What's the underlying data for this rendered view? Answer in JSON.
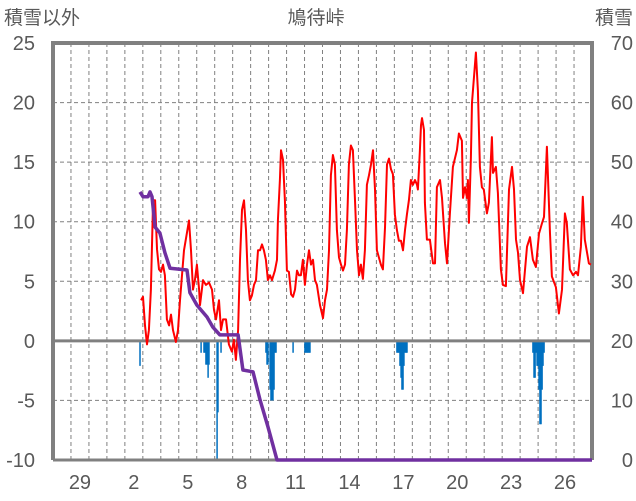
{
  "chart_data": {
    "type": "line",
    "title": "鳩待峠",
    "ylabel_left": "積雪以外",
    "ylabel_right": "積雪",
    "ylim_left": [
      -10,
      25
    ],
    "yticks_left": [
      "25",
      "20",
      "15",
      "10",
      "5",
      "0",
      "-5",
      "-10"
    ],
    "ylim_right": [
      0,
      70
    ],
    "yticks_right": [
      "70",
      "60",
      "50",
      "40",
      "30",
      "20",
      "10",
      "0"
    ],
    "x_unit": "days since 04-28 00:00",
    "xlim": [
      0,
      30
    ],
    "xticks": [
      {
        "label": "29",
        "day": 1.5
      },
      {
        "label": "2",
        "day": 4.5
      },
      {
        "label": "5",
        "day": 7.5
      },
      {
        "label": "8",
        "day": 10.5
      },
      {
        "label": "11",
        "day": 13.5
      },
      {
        "label": "14",
        "day": 16.5
      },
      {
        "label": "17",
        "day": 19.5
      },
      {
        "label": "20",
        "day": 22.5
      },
      {
        "label": "23",
        "day": 25.5
      },
      {
        "label": "26",
        "day": 28.5
      }
    ],
    "grid": true,
    "colors": {
      "red": "#ff0000",
      "purple": "#7030a0",
      "blue": "#0070c0",
      "axis": "#808080",
      "grid": "#808080",
      "text": "#595959"
    },
    "series": [
      {
        "name": "red-line",
        "axis": "left",
        "color": "#ff0000",
        "points": [
          [
            4.9,
            3.4
          ],
          [
            5.01,
            3.7
          ],
          [
            5.12,
            1.3
          ],
          [
            5.23,
            -0.3
          ],
          [
            5.34,
            0.9
          ],
          [
            5.45,
            4.3
          ],
          [
            5.57,
            11.8
          ],
          [
            5.68,
            11.8
          ],
          [
            5.79,
            7.7
          ],
          [
            5.9,
            6.0
          ],
          [
            6.01,
            5.8
          ],
          [
            6.12,
            6.4
          ],
          [
            6.23,
            5.5
          ],
          [
            6.34,
            1.8
          ],
          [
            6.46,
            1.3
          ],
          [
            6.57,
            2.2
          ],
          [
            6.68,
            0.9
          ],
          [
            6.84,
            -0.1
          ],
          [
            6.96,
            0.9
          ],
          [
            7.07,
            3.4
          ],
          [
            7.29,
            7.6
          ],
          [
            7.57,
            10.1
          ],
          [
            7.68,
            7.6
          ],
          [
            7.79,
            4.3
          ],
          [
            7.9,
            5.1
          ],
          [
            8.01,
            6.4
          ],
          [
            8.13,
            4.3
          ],
          [
            8.18,
            3.0
          ],
          [
            8.35,
            5.1
          ],
          [
            8.51,
            4.7
          ],
          [
            8.68,
            4.9
          ],
          [
            8.85,
            4.3
          ],
          [
            8.96,
            2.6
          ],
          [
            9.07,
            1.8
          ],
          [
            9.24,
            3.4
          ],
          [
            9.35,
            0.9
          ],
          [
            9.46,
            1.8
          ],
          [
            9.63,
            1.8
          ],
          [
            9.79,
            -0.3
          ],
          [
            9.96,
            -0.9
          ],
          [
            10.07,
            0.1
          ],
          [
            10.18,
            -1.6
          ],
          [
            10.3,
            0.9
          ],
          [
            10.41,
            6.8
          ],
          [
            10.52,
            11.0
          ],
          [
            10.63,
            11.8
          ],
          [
            10.74,
            9.3
          ],
          [
            10.85,
            5.1
          ],
          [
            10.96,
            3.4
          ],
          [
            11.07,
            3.8
          ],
          [
            11.19,
            4.7
          ],
          [
            11.3,
            5.1
          ],
          [
            11.41,
            7.6
          ],
          [
            11.52,
            7.6
          ],
          [
            11.63,
            8.1
          ],
          [
            11.74,
            7.6
          ],
          [
            11.85,
            6.8
          ],
          [
            11.96,
            5.1
          ],
          [
            12.08,
            5.5
          ],
          [
            12.19,
            5.1
          ],
          [
            12.35,
            5.9
          ],
          [
            12.47,
            6.8
          ],
          [
            12.52,
            10.1
          ],
          [
            12.63,
            13.5
          ],
          [
            12.69,
            16.0
          ],
          [
            12.8,
            15.2
          ],
          [
            12.91,
            11.8
          ],
          [
            13.02,
            5.9
          ],
          [
            13.13,
            5.8
          ],
          [
            13.25,
            3.9
          ],
          [
            13.36,
            3.7
          ],
          [
            13.47,
            4.3
          ],
          [
            13.58,
            5.9
          ],
          [
            13.69,
            5.5
          ],
          [
            13.8,
            5.5
          ],
          [
            13.91,
            6.8
          ],
          [
            14.02,
            4.7
          ],
          [
            14.14,
            6.4
          ],
          [
            14.25,
            7.6
          ],
          [
            14.36,
            6.4
          ],
          [
            14.47,
            6.8
          ],
          [
            14.58,
            5.1
          ],
          [
            14.69,
            4.7
          ],
          [
            14.86,
            3.0
          ],
          [
            15.03,
            1.9
          ],
          [
            15.14,
            3.4
          ],
          [
            15.25,
            4.3
          ],
          [
            15.36,
            7.6
          ],
          [
            15.47,
            13.9
          ],
          [
            15.58,
            15.6
          ],
          [
            15.69,
            14.8
          ],
          [
            15.8,
            9.3
          ],
          [
            15.92,
            7.0
          ],
          [
            16.03,
            6.4
          ],
          [
            16.14,
            5.9
          ],
          [
            16.25,
            6.4
          ],
          [
            16.36,
            9.3
          ],
          [
            16.47,
            14.8
          ],
          [
            16.58,
            16.4
          ],
          [
            16.69,
            16.0
          ],
          [
            16.81,
            11.8
          ],
          [
            16.92,
            7.6
          ],
          [
            17.03,
            5.5
          ],
          [
            17.14,
            6.4
          ],
          [
            17.25,
            5.2
          ],
          [
            17.36,
            7.6
          ],
          [
            17.47,
            13.1
          ],
          [
            17.59,
            13.9
          ],
          [
            17.7,
            14.8
          ],
          [
            17.81,
            16.0
          ],
          [
            17.92,
            12.7
          ],
          [
            18.03,
            7.6
          ],
          [
            18.14,
            7.0
          ],
          [
            18.25,
            6.4
          ],
          [
            18.36,
            6.0
          ],
          [
            18.48,
            9.5
          ],
          [
            18.59,
            14.8
          ],
          [
            18.7,
            15.3
          ],
          [
            18.81,
            14.4
          ],
          [
            18.92,
            14.0
          ],
          [
            19.03,
            10.6
          ],
          [
            19.14,
            9.3
          ],
          [
            19.25,
            8.4
          ],
          [
            19.37,
            8.4
          ],
          [
            19.48,
            7.6
          ],
          [
            19.59,
            9.3
          ],
          [
            19.7,
            10.6
          ],
          [
            19.81,
            11.8
          ],
          [
            19.92,
            13.5
          ],
          [
            20.03,
            13.1
          ],
          [
            20.15,
            13.5
          ],
          [
            20.26,
            13.1
          ],
          [
            20.31,
            12.7
          ],
          [
            20.42,
            16.0
          ],
          [
            20.48,
            18.1
          ],
          [
            20.54,
            18.7
          ],
          [
            20.65,
            17.7
          ],
          [
            20.7,
            11.6
          ],
          [
            20.81,
            8.5
          ],
          [
            20.98,
            8.5
          ],
          [
            21.15,
            6.5
          ],
          [
            21.26,
            6.5
          ],
          [
            21.37,
            12.9
          ],
          [
            21.54,
            13.5
          ],
          [
            21.65,
            12.0
          ],
          [
            21.82,
            8.2
          ],
          [
            21.93,
            6.5
          ],
          [
            22.09,
            10.7
          ],
          [
            22.26,
            14.6
          ],
          [
            22.48,
            16.0
          ],
          [
            22.59,
            17.4
          ],
          [
            22.76,
            16.8
          ],
          [
            22.82,
            12.0
          ],
          [
            22.93,
            12.9
          ],
          [
            23.04,
            12.0
          ],
          [
            23.09,
            13.5
          ],
          [
            23.15,
            9.9
          ],
          [
            23.26,
            15.4
          ],
          [
            23.32,
            20.0
          ],
          [
            23.54,
            24.2
          ],
          [
            23.65,
            21.0
          ],
          [
            23.76,
            14.6
          ],
          [
            23.87,
            12.9
          ],
          [
            23.98,
            12.7
          ],
          [
            24.15,
            10.7
          ],
          [
            24.26,
            11.6
          ],
          [
            24.43,
            17.1
          ],
          [
            24.49,
            14.1
          ],
          [
            24.65,
            14.6
          ],
          [
            24.76,
            12.4
          ],
          [
            24.93,
            6.0
          ],
          [
            25.04,
            4.7
          ],
          [
            25.21,
            4.6
          ],
          [
            25.38,
            12.7
          ],
          [
            25.55,
            14.6
          ],
          [
            25.66,
            12.7
          ],
          [
            25.77,
            8.5
          ],
          [
            25.88,
            7.4
          ],
          [
            25.99,
            5.1
          ],
          [
            26.16,
            4.0
          ],
          [
            26.38,
            7.9
          ],
          [
            26.55,
            8.7
          ],
          [
            26.71,
            6.8
          ],
          [
            26.88,
            6.2
          ],
          [
            27.05,
            9.0
          ],
          [
            27.22,
            9.9
          ],
          [
            27.33,
            10.4
          ],
          [
            27.49,
            16.3
          ],
          [
            27.66,
            9.0
          ],
          [
            27.77,
            5.4
          ],
          [
            27.99,
            4.5
          ],
          [
            28.16,
            2.3
          ],
          [
            28.33,
            4.3
          ],
          [
            28.49,
            10.7
          ],
          [
            28.6,
            9.9
          ],
          [
            28.77,
            6.0
          ],
          [
            28.94,
            5.5
          ],
          [
            29.11,
            5.8
          ],
          [
            29.22,
            5.5
          ],
          [
            29.38,
            7.9
          ],
          [
            29.49,
            12.1
          ],
          [
            29.6,
            8.5
          ],
          [
            29.83,
            6.5
          ],
          [
            29.94,
            6.4
          ]
        ]
      },
      {
        "name": "積雪",
        "axis": "right",
        "color": "#7030a0",
        "points": [
          [
            4.84,
            45.0
          ],
          [
            5.01,
            44.2
          ],
          [
            5.29,
            44.2
          ],
          [
            5.4,
            45.0
          ],
          [
            5.51,
            44.2
          ],
          [
            5.68,
            39.1
          ],
          [
            5.95,
            38.1
          ],
          [
            6.23,
            34.8
          ],
          [
            6.51,
            32.2
          ],
          [
            7.46,
            31.9
          ],
          [
            7.62,
            28.1
          ],
          [
            8.01,
            26.0
          ],
          [
            8.57,
            24.0
          ],
          [
            8.9,
            22.3
          ],
          [
            9.29,
            21.0
          ],
          [
            10.3,
            21.0
          ],
          [
            10.57,
            15.1
          ],
          [
            11.13,
            14.8
          ],
          [
            11.52,
            10.1
          ],
          [
            11.96,
            5.6
          ],
          [
            12.47,
            0
          ],
          [
            30.0,
            0
          ]
        ]
      },
      {
        "name": "blue-bars",
        "axis": "left",
        "type": "bar",
        "color": "#0070c0",
        "points": [
          [
            4.84,
            -2.1
          ],
          [
            8.24,
            -1.0
          ],
          [
            8.4,
            -1.0
          ],
          [
            8.46,
            -1.0
          ],
          [
            8.51,
            -2.0
          ],
          [
            8.57,
            -2.0
          ],
          [
            8.63,
            -3.1
          ],
          [
            8.68,
            -2.0
          ],
          [
            9.13,
            -10.0
          ],
          [
            9.18,
            -6.0
          ],
          [
            9.35,
            -1.0
          ],
          [
            11.85,
            -1.0
          ],
          [
            11.91,
            -2.0
          ],
          [
            11.96,
            -2.0
          ],
          [
            12.08,
            -4.1
          ],
          [
            12.13,
            -5.0
          ],
          [
            12.19,
            -5.0
          ],
          [
            12.24,
            -5.0
          ],
          [
            12.3,
            -4.1
          ],
          [
            12.35,
            -1.0
          ],
          [
            12.41,
            -1.0
          ],
          [
            13.36,
            -1.0
          ],
          [
            14.02,
            -1.0
          ],
          [
            14.08,
            -1.0
          ],
          [
            14.14,
            -1.0
          ],
          [
            14.19,
            -1.0
          ],
          [
            14.25,
            -1.0
          ],
          [
            14.3,
            -1.0
          ],
          [
            19.14,
            -1.0
          ],
          [
            19.2,
            -1.0
          ],
          [
            19.25,
            -1.0
          ],
          [
            19.31,
            -2.1
          ],
          [
            19.37,
            -3.1
          ],
          [
            19.42,
            -4.1
          ],
          [
            19.48,
            -4.1
          ],
          [
            19.53,
            -2.1
          ],
          [
            19.59,
            -1.0
          ],
          [
            19.65,
            -1.0
          ],
          [
            19.7,
            -1.0
          ],
          [
            26.71,
            -1.0
          ],
          [
            26.77,
            -3.1
          ],
          [
            26.83,
            -3.1
          ],
          [
            26.88,
            -1.0
          ],
          [
            26.94,
            -2.1
          ],
          [
            26.99,
            -2.1
          ],
          [
            27.05,
            -4.1
          ],
          [
            27.1,
            -7.0
          ],
          [
            27.16,
            -7.0
          ],
          [
            27.22,
            -4.1
          ],
          [
            27.27,
            -2.1
          ],
          [
            27.33,
            -1.0
          ]
        ]
      }
    ]
  }
}
